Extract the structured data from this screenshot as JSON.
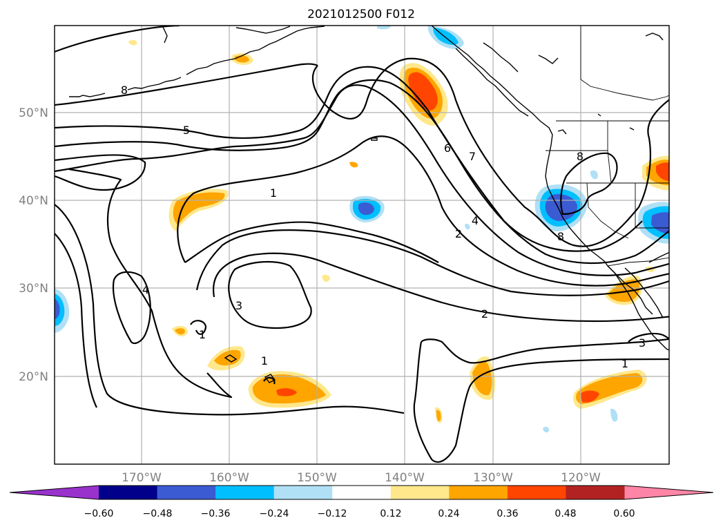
{
  "title": "2021012500 F012",
  "map": {
    "lat_labels": [
      "50°N",
      "40°N",
      "30°N",
      "20°N"
    ],
    "lon_labels": [
      "170°W",
      "160°W",
      "150°W",
      "140°W",
      "130°W",
      "120°W"
    ],
    "extent": {
      "lon_range": [
        "180°W",
        "110°W"
      ],
      "lat_range": [
        "10°N",
        "60°N"
      ]
    },
    "gridlines": true,
    "features": [
      "coastlines",
      "country-borders",
      "state-borders"
    ],
    "contour_labels": [
      "8",
      "5",
      "1",
      "6",
      "7",
      "4",
      "2",
      "8",
      "8",
      "4",
      "3",
      "1",
      "1",
      "2",
      "3",
      "1"
    ]
  },
  "colorbar": {
    "tick_labels": [
      "−0.60",
      "−0.48",
      "−0.36",
      "−0.24",
      "−0.12",
      "0.12",
      "0.24",
      "0.36",
      "0.48",
      "0.60"
    ],
    "colors": [
      "#9932CC",
      "#00008B",
      "#3B5BD3",
      "#00BFFF",
      "#B0E0F6",
      "#FFFFFF",
      "#FFE88C",
      "#FFA500",
      "#FF4500",
      "#B22222",
      "#FF85A6"
    ],
    "extend": "both"
  }
}
